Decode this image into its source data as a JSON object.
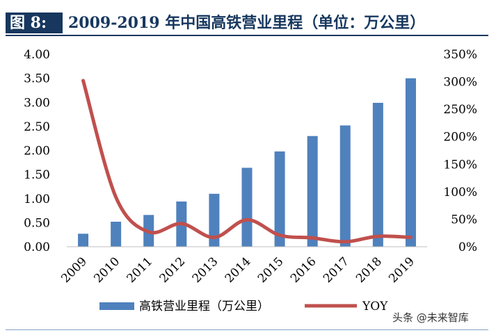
{
  "figure": {
    "label": "图 8:",
    "title": "2009-2019 年中国高铁营业里程（单位：万公里）"
  },
  "watermark": "头条 @未来智库",
  "chart_data": {
    "type": "bar",
    "categories": [
      "2009",
      "2010",
      "2011",
      "2012",
      "2013",
      "2014",
      "2015",
      "2016",
      "2017",
      "2018",
      "2019"
    ],
    "series": [
      {
        "name": "高铁营业里程（万公里）",
        "type": "bar",
        "axis": "left",
        "color": "#4f81bd",
        "values": [
          0.27,
          0.52,
          0.66,
          0.94,
          1.1,
          1.64,
          1.98,
          2.3,
          2.52,
          2.99,
          3.5
        ]
      },
      {
        "name": "YOY",
        "type": "line",
        "axis": "right",
        "color": "#c0504d",
        "values": [
          3.02,
          0.9,
          0.27,
          0.42,
          0.17,
          0.49,
          0.21,
          0.16,
          0.09,
          0.19,
          0.17
        ]
      }
    ],
    "y_left": {
      "range": [
        0,
        4
      ],
      "ticks": [
        "0.00",
        "0.50",
        "1.00",
        "1.50",
        "2.00",
        "2.50",
        "3.00",
        "3.50",
        "4.00"
      ]
    },
    "y_right": {
      "range": [
        0,
        3.5
      ],
      "ticks": [
        "0%",
        "50%",
        "100%",
        "150%",
        "200%",
        "250%",
        "300%",
        "350%"
      ]
    },
    "legend": {
      "position": "bottom"
    }
  }
}
